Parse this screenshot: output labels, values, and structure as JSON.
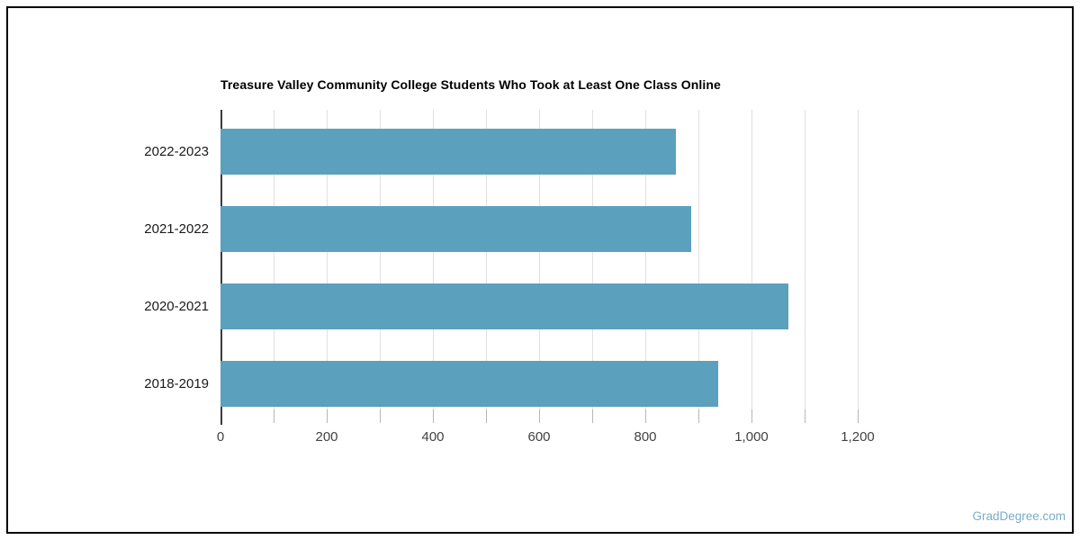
{
  "page": {
    "background": "#ffffff",
    "border_color": "#000000"
  },
  "watermark": {
    "text": "GradDegree.com",
    "color": "#7aaccb"
  },
  "chart_data": {
    "type": "bar",
    "orientation": "horizontal",
    "title": "Treasure Valley Community College Students Who Took at Least One Class Online",
    "categories": [
      "2022-2023",
      "2021-2022",
      "2020-2021",
      "2018-2019"
    ],
    "values": [
      857,
      887,
      1069,
      938
    ],
    "xlabel": "",
    "ylabel": "",
    "xlim": [
      0,
      1200
    ],
    "x_tick_values": [
      0,
      200,
      400,
      600,
      800,
      1000,
      1200
    ],
    "x_tick_labels": [
      "0",
      "200",
      "400",
      "600",
      "800",
      "1,000",
      "1,200"
    ],
    "minor_grid_step": 100,
    "grid": "vertical",
    "legend": "none",
    "bar_color": "#5ba0bc",
    "grid_color": "#e0e0e0",
    "axis_color": "#3b3b3b",
    "tick_color": "#b6b6b6",
    "title_color": "#000000",
    "category_label_color": "#1a1a1a",
    "tick_label_color": "#424242"
  }
}
